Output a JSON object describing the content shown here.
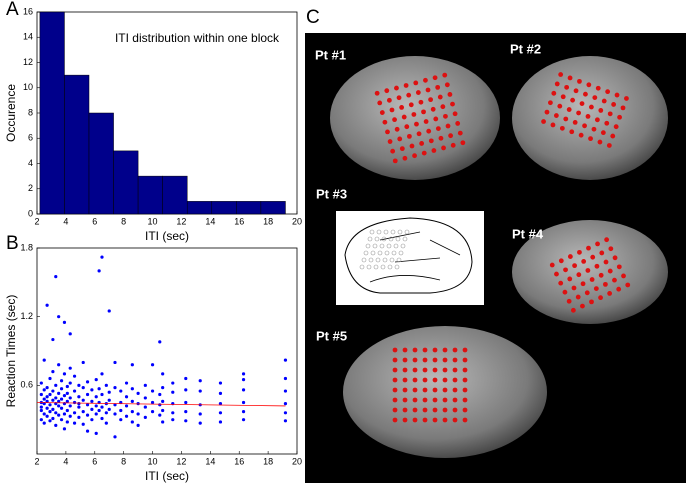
{
  "panel_labels": [
    "A",
    "B",
    "C"
  ],
  "patients": [
    "Pt #1",
    "Pt #2",
    "Pt #3",
    "Pt #4",
    "Pt #5"
  ],
  "chart_data": [
    {
      "type": "histogram",
      "title": "ITI distribution within one block",
      "x_label": "ITI (sec)",
      "y_label": "Occurence",
      "bins": [
        2.2,
        3.9,
        5.6,
        7.3,
        9.0,
        10.7,
        12.4,
        14.1,
        15.8,
        17.5,
        19.2
      ],
      "values": [
        16,
        11,
        8,
        5,
        3,
        3,
        1,
        1,
        1,
        1
      ],
      "color": "#00008b",
      "xlim": [
        2,
        20
      ],
      "xticks": [
        2,
        4,
        6,
        8,
        10,
        12,
        14,
        16,
        18,
        20
      ],
      "ylim": [
        0,
        16
      ],
      "yticks": [
        0,
        2,
        4,
        6,
        8,
        10,
        12,
        14,
        16
      ]
    },
    {
      "type": "scatter",
      "x_label": "ITI (sec)",
      "y_label": "Reaction Times (sec)",
      "color": "#0000ff",
      "x": [
        2.3,
        2.3,
        2.3,
        2.3,
        2.3,
        2.3,
        2.5,
        2.5,
        2.5,
        2.5,
        2.5,
        2.5,
        2.7,
        2.7,
        2.7,
        2.7,
        2.7,
        2.7,
        2.9,
        2.9,
        2.9,
        2.9,
        2.9,
        3.1,
        3.1,
        3.1,
        3.1,
        3.1,
        3.1,
        3.3,
        3.3,
        3.3,
        3.3,
        3.3,
        3.3,
        3.5,
        3.5,
        3.5,
        3.5,
        3.5,
        3.5,
        3.7,
        3.7,
        3.7,
        3.7,
        3.7,
        3.9,
        3.9,
        3.9,
        3.9,
        3.9,
        3.9,
        4.1,
        4.1,
        4.1,
        4.1,
        4.1,
        4.3,
        4.3,
        4.3,
        4.3,
        4.3,
        4.3,
        4.6,
        4.6,
        4.6,
        4.6,
        4.6,
        4.9,
        4.9,
        4.9,
        4.9,
        4.9,
        5.2,
        5.2,
        5.2,
        5.2,
        5.2,
        5.5,
        5.5,
        5.5,
        5.5,
        5.5,
        5.8,
        5.8,
        5.8,
        5.8,
        6.1,
        6.1,
        6.1,
        6.1,
        6.1,
        6.3,
        6.3,
        6.3,
        6.3,
        6.5,
        6.5,
        6.5,
        6.5,
        6.5,
        6.8,
        6.8,
        6.8,
        6.8,
        7.0,
        7.0,
        7.0,
        7.0,
        7.4,
        7.4,
        7.4,
        7.4,
        7.4,
        7.8,
        7.8,
        7.8,
        7.8,
        8.2,
        8.2,
        8.2,
        8.2,
        8.6,
        8.6,
        8.6,
        8.6,
        8.6,
        9.0,
        9.0,
        9.0,
        9.0,
        9.5,
        9.5,
        9.5,
        9.5,
        10.0,
        10.0,
        10.0,
        10.0,
        10.5,
        10.5,
        10.5,
        10.5,
        10.7,
        10.7,
        10.7,
        10.7,
        10.7,
        11.4,
        11.4,
        11.4,
        11.4,
        11.4,
        12.3,
        12.3,
        12.3,
        12.3,
        12.3,
        13.3,
        13.3,
        13.3,
        13.3,
        13.3,
        14.7,
        14.7,
        14.7,
        14.7,
        14.7,
        16.3,
        16.3,
        16.3,
        16.3,
        16.3,
        16.3,
        19.2,
        19.2,
        19.2,
        19.2,
        19.2,
        19.2
      ],
      "values": [
        0.45,
        0.38,
        0.52,
        0.3,
        0.62,
        0.41,
        0.48,
        0.35,
        0.56,
        0.44,
        0.82,
        0.27,
        0.4,
        0.5,
        1.3,
        0.33,
        0.58,
        0.46,
        0.43,
        0.37,
        0.66,
        0.29,
        0.52,
        0.47,
        1.0,
        0.39,
        0.55,
        0.31,
        0.72,
        1.55,
        0.44,
        0.36,
        0.6,
        0.49,
        0.25,
        1.2,
        0.42,
        0.53,
        0.34,
        0.78,
        0.46,
        0.4,
        0.57,
        0.3,
        0.48,
        0.64,
        1.15,
        0.44,
        0.35,
        0.51,
        0.7,
        0.22,
        0.46,
        0.38,
        0.59,
        0.28,
        0.53,
        1.05,
        0.42,
        0.33,
        0.62,
        0.49,
        0.75,
        0.45,
        0.36,
        0.55,
        0.27,
        0.68,
        0.41,
        0.5,
        0.32,
        0.6,
        0.44,
        0.47,
        0.37,
        0.58,
        0.26,
        0.8,
        0.43,
        0.52,
        0.34,
        0.63,
        0.2,
        0.46,
        0.39,
        0.56,
        0.3,
        0.42,
        0.5,
        0.35,
        0.65,
        0.18,
        1.6,
        0.45,
        0.38,
        0.57,
        1.72,
        0.41,
        0.52,
        0.31,
        0.7,
        0.44,
        0.36,
        0.6,
        0.27,
        1.25,
        0.47,
        0.39,
        0.54,
        0.43,
        0.35,
        0.58,
        0.15,
        0.8,
        0.45,
        0.38,
        0.55,
        0.3,
        0.42,
        0.5,
        0.33,
        0.62,
        0.46,
        0.37,
        0.57,
        0.28,
        0.78,
        0.44,
        0.35,
        0.53,
        0.25,
        0.41,
        0.49,
        0.32,
        0.6,
        0.45,
        0.37,
        0.55,
        0.78,
        0.98,
        0.43,
        0.34,
        0.52,
        0.46,
        0.38,
        0.58,
        0.28,
        0.7,
        0.44,
        0.36,
        0.54,
        0.3,
        0.62,
        0.45,
        0.37,
        0.56,
        0.29,
        0.66,
        0.43,
        0.35,
        0.55,
        0.27,
        0.64,
        0.44,
        0.36,
        0.53,
        0.28,
        0.62,
        0.45,
        0.37,
        0.56,
        0.3,
        0.7,
        0.65,
        0.44,
        0.36,
        0.55,
        0.29,
        0.66,
        0.82
      ],
      "fit": {
        "x": [
          2,
          19.2
        ],
        "values": [
          0.45,
          0.42
        ],
        "color": "#ff0000"
      },
      "xlim": [
        2,
        20
      ],
      "xticks": [
        2,
        4,
        6,
        8,
        10,
        12,
        14,
        16,
        18,
        20
      ],
      "ylim": [
        0,
        1.8
      ],
      "yticks": [
        0.6,
        1.2,
        1.8
      ]
    }
  ]
}
